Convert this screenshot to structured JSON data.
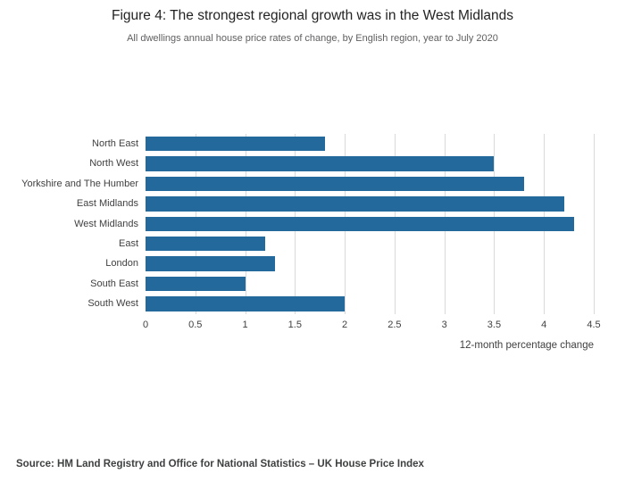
{
  "header": {
    "title": "Figure 4: The strongest regional growth was in the West Midlands",
    "subtitle": "All dwellings annual house price rates of change, by English region, year to July 2020"
  },
  "chart_data": {
    "type": "bar",
    "orientation": "horizontal",
    "title": "Figure 4: The strongest regional growth was in the West Midlands",
    "subtitle": "All dwellings annual house price rates of change, by English region, year to July 2020",
    "categories": [
      "North East",
      "North West",
      "Yorkshire and The Humber",
      "East Midlands",
      "West Midlands",
      "East",
      "London",
      "South East",
      "South West"
    ],
    "values": [
      1.8,
      3.5,
      3.8,
      4.2,
      4.3,
      1.2,
      1.3,
      1.0,
      2.0
    ],
    "xlabel": "12-month percentage change",
    "ylabel": "",
    "xlim": [
      0,
      4.5
    ],
    "xticks": [
      0,
      0.5,
      1,
      1.5,
      2,
      2.5,
      3,
      3.5,
      4,
      4.5
    ],
    "tick_labels": [
      "0",
      "0.5",
      "1",
      "1.5",
      "2",
      "2.5",
      "3",
      "3.5",
      "4",
      "4.5"
    ],
    "grid": "vertical",
    "legend": "none",
    "bar_color": "#24699c",
    "grid_color": "#d9d9d9"
  },
  "footer": {
    "source": "Source: HM Land Registry and Office for National Statistics – UK House Price Index"
  }
}
